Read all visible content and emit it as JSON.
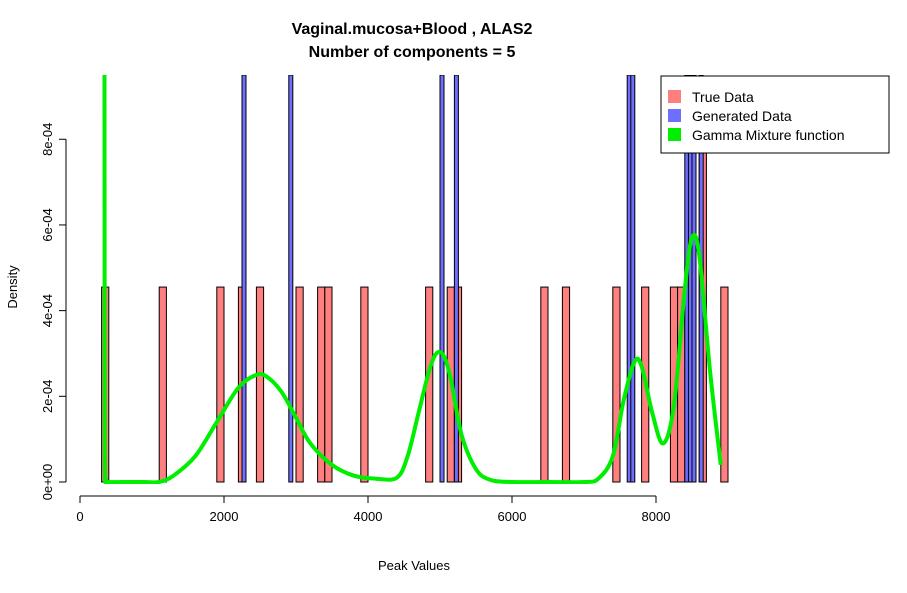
{
  "chart_data": {
    "type": "bar",
    "title": "Vaginal.mucosa+Blood , ALAS2",
    "subtitle": "Number of components =  5",
    "xlabel": "Peak Values",
    "ylabel": "Density",
    "xlim": [
      0,
      9000
    ],
    "ylim": [
      0,
      0.00095
    ],
    "x_ticks": [
      0,
      2000,
      4000,
      6000,
      8000
    ],
    "x_tick_labels": [
      "0",
      "2000",
      "4000",
      "6000",
      "8000"
    ],
    "y_ticks": [
      0,
      0.0002,
      0.0004,
      0.0006,
      0.0008
    ],
    "y_tick_labels": [
      "0e+00",
      "2e-04",
      "4e-04",
      "6e-04",
      "8e-04"
    ],
    "grid": false,
    "legend_position": "top-right",
    "bin_width": 100,
    "colors": {
      "true_data": "#ff7f7f",
      "generated_data": "#6f6fff",
      "gamma_mixture": "#00ee00"
    },
    "series": [
      {
        "name": "True Data",
        "kind": "histogram",
        "bin_starts": [
          300,
          1100,
          1900,
          2200,
          2450,
          3000,
          3300,
          3400,
          3900,
          4800,
          5100,
          5200,
          6400,
          6700,
          7400,
          7800,
          8200,
          8300,
          8600,
          8900
        ],
        "values": [
          0.000455,
          0.000455,
          0.000455,
          0.000455,
          0.000455,
          0.000455,
          0.000455,
          0.000455,
          0.000455,
          0.000455,
          0.000455,
          0.000455,
          0.000455,
          0.000455,
          0.000455,
          0.000455,
          0.000455,
          0.000455,
          0.00091,
          0.000455
        ]
      },
      {
        "name": "Generated Data",
        "kind": "histogram",
        "bin_starts": [
          2250,
          2900,
          5000,
          5200,
          7600,
          7650,
          8400,
          8450,
          8500,
          8600
        ],
        "values": [
          0.00095,
          0.00095,
          0.00095,
          0.00095,
          0.00095,
          0.00095,
          0.00095,
          0.00095,
          0.00095,
          0.00095
        ]
      },
      {
        "name": "Gamma Mixture function",
        "kind": "line",
        "x": [
          340,
          345,
          360,
          400,
          600,
          900,
          1100,
          1300,
          1600,
          1900,
          2200,
          2450,
          2600,
          2800,
          3000,
          3200,
          3500,
          3800,
          4100,
          4400,
          4550,
          4700,
          4850,
          4950,
          5050,
          5150,
          5300,
          5500,
          5700,
          6000,
          6500,
          7000,
          7200,
          7400,
          7550,
          7700,
          7800,
          7950,
          8100,
          8250,
          8400,
          8500,
          8600,
          8750,
          8900
        ],
        "y": [
          0.00095,
          0.0001,
          5e-06,
          0.0,
          0.0,
          0.0,
          0.0,
          1.5e-05,
          6e-05,
          0.00014,
          0.00022,
          0.00025,
          0.000245,
          0.00021,
          0.00015,
          9e-05,
          4e-05,
          1.5e-05,
          8e-06,
          1e-05,
          6e-05,
          0.00016,
          0.00026,
          0.0003,
          0.000295,
          0.00024,
          0.00011,
          3e-05,
          5e-06,
          0.0,
          0.0,
          0.0,
          8e-06,
          6e-05,
          0.00019,
          0.00028,
          0.00027,
          0.00016,
          9e-05,
          0.00018,
          0.00045,
          0.00057,
          0.00053,
          0.00026,
          4e-05
        ]
      }
    ]
  }
}
